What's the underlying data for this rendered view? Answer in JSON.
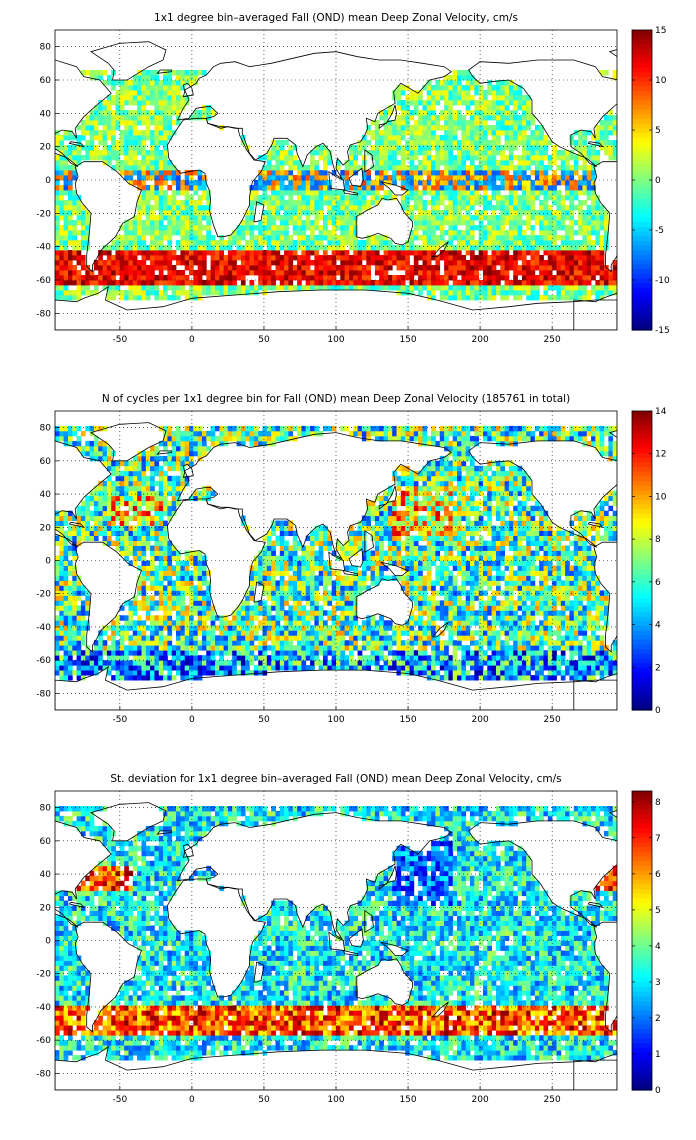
{
  "figure": {
    "panels": [
      {
        "title": "1x1 degree bin–averaged Fall (OND) mean Deep Zonal Velocity, cm/s",
        "colorbar_ticks": [
          "15",
          "10",
          "5",
          "0",
          "-5",
          "-10",
          "-15"
        ],
        "colorbar_values": [
          15,
          10,
          5,
          0,
          -5,
          -10,
          -15
        ],
        "colormap": "jet"
      },
      {
        "title": "N of cycles per 1x1 degree bin for Fall (OND) mean Deep Zonal Velocity (185761 in total)",
        "colorbar_ticks": [
          "14",
          "12",
          "10",
          "8",
          "6",
          "4",
          "2",
          "0"
        ],
        "colorbar_values": [
          14,
          12,
          10,
          8,
          6,
          4,
          2,
          0
        ],
        "colormap": "jet"
      },
      {
        "title": "St. deviation for 1x1 degree bin–averaged Fall (OND) mean Deep Zonal Velocity, cm/s",
        "colorbar_ticks": [
          "8",
          "7",
          "6",
          "5",
          "4",
          "3",
          "2",
          "1",
          "0"
        ],
        "colorbar_values": [
          8,
          7,
          6,
          5,
          4,
          3,
          2,
          1,
          0
        ],
        "colormap": "jet"
      }
    ],
    "x_ticks": [
      "-50",
      "0",
      "50",
      "100",
      "150",
      "200",
      "250"
    ],
    "y_ticks": [
      "80",
      "60",
      "40",
      "20",
      "0",
      "-20",
      "-40",
      "-60",
      "-80"
    ]
  },
  "chart_data": [
    {
      "type": "heatmap",
      "title": "1x1 degree bin–averaged Fall (OND) mean Deep Zonal Velocity, cm/s",
      "xlim": [
        -95,
        295
      ],
      "ylim": [
        -90,
        90
      ],
      "x_ticks": [
        -50,
        0,
        50,
        100,
        150,
        200,
        250
      ],
      "y_ticks": [
        -80,
        -60,
        -40,
        -20,
        0,
        20,
        40,
        60,
        80
      ],
      "clim": [
        -15,
        15
      ],
      "colormap": "jet",
      "grid": true,
      "colorbar": "right"
    },
    {
      "type": "heatmap",
      "title": "N of cycles per 1x1 degree bin for Fall (OND) mean Deep Zonal Velocity (185761 in total)",
      "xlim": [
        -95,
        295
      ],
      "ylim": [
        -90,
        90
      ],
      "x_ticks": [
        -50,
        0,
        50,
        100,
        150,
        200,
        250
      ],
      "y_ticks": [
        -80,
        -60,
        -40,
        -20,
        0,
        20,
        40,
        60,
        80
      ],
      "clim": [
        0,
        14
      ],
      "colormap": "jet",
      "grid": true,
      "colorbar": "right"
    },
    {
      "type": "heatmap",
      "title": "St. deviation for 1x1 degree bin–averaged Fall (OND) mean Deep Zonal Velocity, cm/s",
      "xlim": [
        -95,
        295
      ],
      "ylim": [
        -90,
        90
      ],
      "x_ticks": [
        -50,
        0,
        50,
        100,
        150,
        200,
        250
      ],
      "y_ticks": [
        -80,
        -60,
        -40,
        -20,
        0,
        20,
        40,
        60,
        80
      ],
      "clim": [
        0,
        8.3
      ],
      "colormap": "jet",
      "grid": true,
      "colorbar": "right"
    }
  ]
}
